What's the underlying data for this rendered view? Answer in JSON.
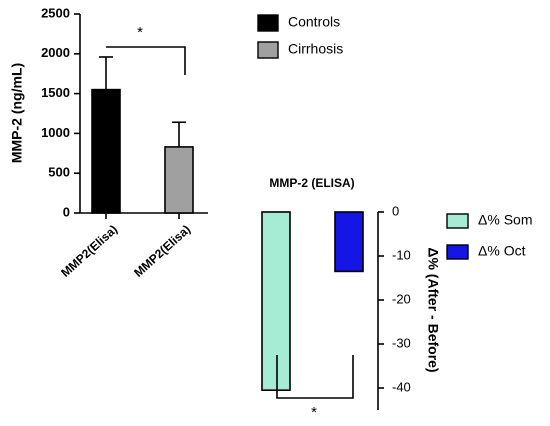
{
  "chart_data": [
    {
      "type": "bar",
      "y_label": "MMP-2 (ng/mL)",
      "categories": [
        "MMP2(Elisa)",
        "MMP2(Elisa)"
      ],
      "values": [
        1550,
        830
      ],
      "errors": [
        410,
        310
      ],
      "colors": [
        "#000000",
        "#a0a0a0"
      ],
      "legend": [
        "Controls",
        "Cirrhosis"
      ],
      "ylim": [
        0,
        2500
      ],
      "yticks": [
        0,
        500,
        1000,
        1500,
        2000,
        2500
      ],
      "annotation": "*"
    },
    {
      "type": "bar",
      "title": "MMP-2 (ELISA)",
      "y_label": "Δ% (After - Before)",
      "values": [
        -40.5,
        -13.5
      ],
      "colors": [
        "#a6ecd4",
        "#1515e6"
      ],
      "legend": [
        "Δ% Som",
        "Δ% Oct"
      ],
      "ylim": [
        -45,
        0
      ],
      "yticks": [
        0,
        -10,
        -20,
        -30,
        -40
      ],
      "y_axis_side": "right",
      "annotation": "*"
    }
  ]
}
